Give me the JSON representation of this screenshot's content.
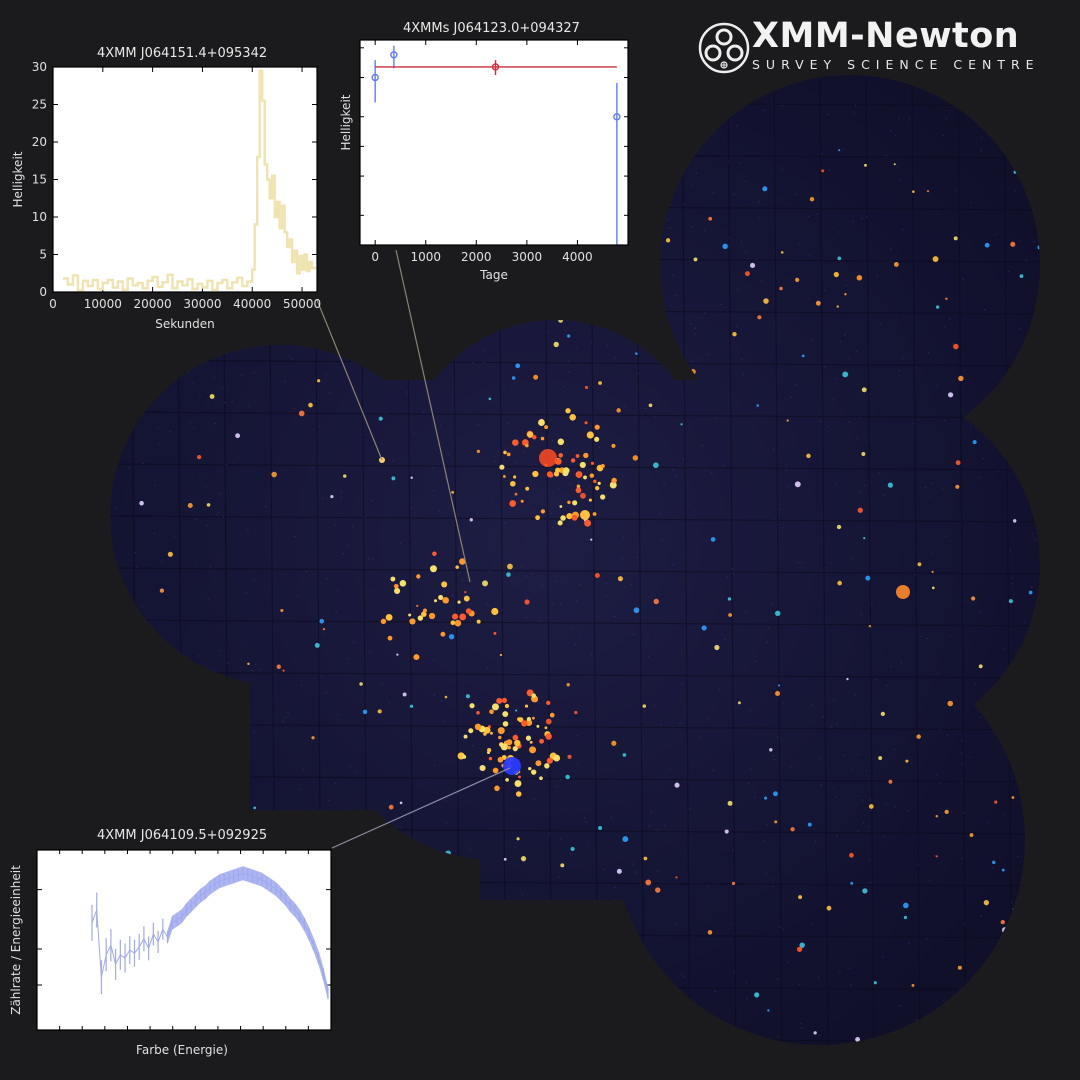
{
  "logo": {
    "title": "XMM-Newton",
    "subtitle": "SURVEY SCIENCE CENTRE"
  },
  "colors": {
    "background": "#1b1b1d",
    "lightcurve_line": "#efe3b0",
    "longterm_blue": "#5f7bff",
    "longterm_red": "#cc2f3a",
    "spectrum": "#9fa9ee"
  },
  "chart_data": [
    {
      "type": "line",
      "title": "4XMM J064151.4+095342",
      "xlabel": "Sekunden",
      "ylabel": "Helligkeit",
      "xlim": [
        0,
        53000
      ],
      "ylim": [
        0,
        30
      ],
      "xticks": [
        "0",
        "10000",
        "20000",
        "30000",
        "40000",
        "50000"
      ],
      "yticks": [
        "0",
        "5",
        "10",
        "15",
        "20",
        "25",
        "30"
      ],
      "step": true,
      "x": [
        2000,
        3000,
        4000,
        5000,
        6000,
        7000,
        8000,
        9000,
        10000,
        11000,
        12000,
        13000,
        14000,
        15000,
        16000,
        17000,
        18000,
        19000,
        20000,
        21000,
        22000,
        23000,
        24000,
        25000,
        26000,
        27000,
        28000,
        29000,
        30000,
        31000,
        32000,
        33000,
        34000,
        35000,
        36000,
        37000,
        38000,
        39000,
        40000,
        40500,
        41000,
        41500,
        42000,
        42500,
        43000,
        43500,
        44000,
        44500,
        45000,
        45500,
        46000,
        46500,
        47000,
        47500,
        48000,
        48500,
        49000,
        49500,
        50000,
        50500,
        51000,
        51500,
        52000
      ],
      "y": [
        1.8,
        1.0,
        2.2,
        0.2,
        1.5,
        0.8,
        1.6,
        0.4,
        1.2,
        1.6,
        0.6,
        1.4,
        0.3,
        1.8,
        0.9,
        1.2,
        0.5,
        1.5,
        2.0,
        0.7,
        1.3,
        2.3,
        0.5,
        1.4,
        0.9,
        1.7,
        0.4,
        1.1,
        0.6,
        1.5,
        0.3,
        1.2,
        1.6,
        0.5,
        1.3,
        1.9,
        0.8,
        1.4,
        3.0,
        9.0,
        18.0,
        29.5,
        25.5,
        17.0,
        15.0,
        12.5,
        15.5,
        10.0,
        12.0,
        8.5,
        11.5,
        8.0,
        6.0,
        7.0,
        4.0,
        5.5,
        2.5,
        4.8,
        3.0,
        5.0,
        2.8,
        4.0,
        3.2
      ]
    },
    {
      "type": "scatter",
      "title": "4XMMs J064123.0+094327",
      "xlabel": "Tage",
      "ylabel": "Helligkeit",
      "xlim": [
        -300,
        5000
      ],
      "yscale": "log",
      "xticks": [
        "0",
        "1000",
        "2000",
        "3000",
        "4000"
      ],
      "series": [
        {
          "color": "#5f7bff",
          "points": [
            {
              "x": 0,
              "y": 5.0,
              "ylo": 2.8,
              "yhi": 7.5
            },
            {
              "x": 370,
              "y": 8.5,
              "ylo": 6.2,
              "yhi": 10.5
            },
            {
              "x": 4780,
              "y": 2.0,
              "ylo": 0.1,
              "yhi": 4.4
            }
          ]
        },
        {
          "color": "#cc2f3a",
          "points": [
            {
              "x": 2380,
              "y": 6.4,
              "ylo": 5.3,
              "yhi": 7.5,
              "xlo": 0,
              "xhi": 4780
            }
          ]
        }
      ]
    },
    {
      "type": "line",
      "title": "4XMM J064109.5+092925",
      "xlabel": "Farbe (Energie)",
      "ylabel": "Zählrate / Energieeinheit",
      "yscale": "log",
      "x": [
        0.0,
        0.02,
        0.04,
        0.06,
        0.08,
        0.1,
        0.12,
        0.14,
        0.16,
        0.18,
        0.2,
        0.22,
        0.24,
        0.26,
        0.28,
        0.3,
        0.32,
        0.34,
        0.36,
        0.38,
        0.4,
        0.42,
        0.44,
        0.46,
        0.48,
        0.5,
        0.52,
        0.54,
        0.56,
        0.58,
        0.6,
        0.62,
        0.64,
        0.66,
        0.68,
        0.7,
        0.72,
        0.74,
        0.76,
        0.78,
        0.8,
        0.82,
        0.84,
        0.86,
        0.88,
        0.9,
        0.92,
        0.94,
        0.96,
        0.98,
        1.0
      ],
      "y": [
        0.62,
        0.7,
        0.28,
        0.42,
        0.48,
        0.36,
        0.42,
        0.4,
        0.45,
        0.43,
        0.47,
        0.52,
        0.46,
        0.55,
        0.5,
        0.58,
        0.53,
        0.62,
        0.64,
        0.66,
        0.7,
        0.73,
        0.76,
        0.79,
        0.81,
        0.84,
        0.86,
        0.88,
        0.89,
        0.9,
        0.91,
        0.92,
        0.93,
        0.92,
        0.91,
        0.9,
        0.89,
        0.87,
        0.85,
        0.83,
        0.8,
        0.77,
        0.73,
        0.7,
        0.66,
        0.61,
        0.55,
        0.48,
        0.4,
        0.3,
        0.18
      ]
    }
  ]
}
